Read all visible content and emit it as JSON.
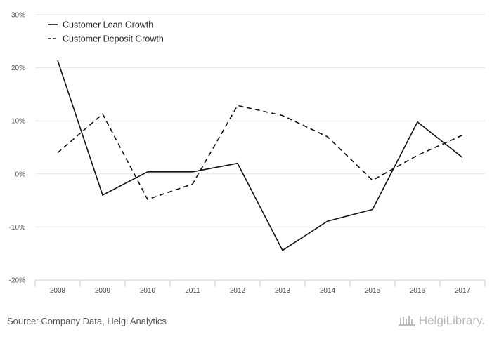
{
  "chart_data": {
    "type": "line",
    "title": "",
    "xlabel": "",
    "ylabel": "",
    "x": [
      "2008",
      "2009",
      "2010",
      "2011",
      "2012",
      "2013",
      "2014",
      "2015",
      "2016",
      "2017"
    ],
    "ylim": [
      -20,
      30
    ],
    "yticks": [
      30,
      20,
      10,
      0,
      -10,
      -20
    ],
    "ytick_labels": [
      "30%",
      "20%",
      "10%",
      "0%",
      "-10%",
      "-20%"
    ],
    "grid": "horizontal",
    "legend_position": "top-left",
    "series": [
      {
        "name": "Customer Loan Growth",
        "style": "solid",
        "color": "#111111",
        "values": [
          21.4,
          -4.0,
          0.4,
          0.4,
          2.0,
          -14.4,
          -8.9,
          -6.7,
          9.8,
          3.1
        ]
      },
      {
        "name": "Customer Deposit Growth",
        "style": "dashed",
        "color": "#111111",
        "values": [
          4.0,
          11.3,
          -4.8,
          -1.9,
          12.9,
          11.0,
          7.0,
          -1.2,
          3.5,
          7.3
        ]
      }
    ]
  },
  "footer": {
    "source": "Source: Company Data, Helgi Analytics",
    "brand": "HelgiLibrary."
  }
}
